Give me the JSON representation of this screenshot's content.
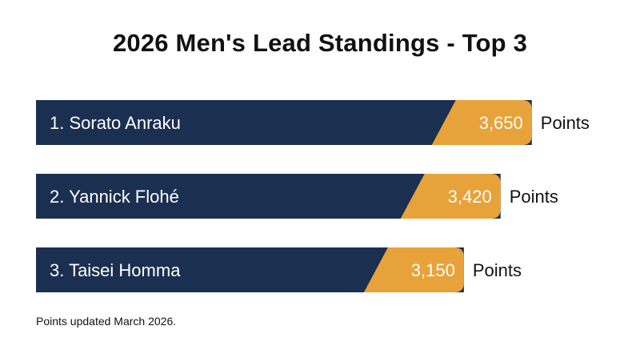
{
  "chart_data": {
    "type": "bar",
    "orientation": "horizontal",
    "title": "2026 Men's Lead Standings - Top 3",
    "categories": [
      "1. Sorato Anraku",
      "2. Yannick Flohé",
      "3. Taisei Homma"
    ],
    "values": [
      3650,
      3420,
      3150
    ],
    "value_labels": [
      "3,650",
      "3,420",
      "3,150"
    ],
    "unit_label": "Points",
    "footnote": "Points updated March 2026.",
    "colors": {
      "bar": "#1b2f50",
      "value_segment": "#e7a23a",
      "category_text": "#ffffff",
      "value_text": "#ffffff",
      "unit_text": "#111111"
    }
  }
}
